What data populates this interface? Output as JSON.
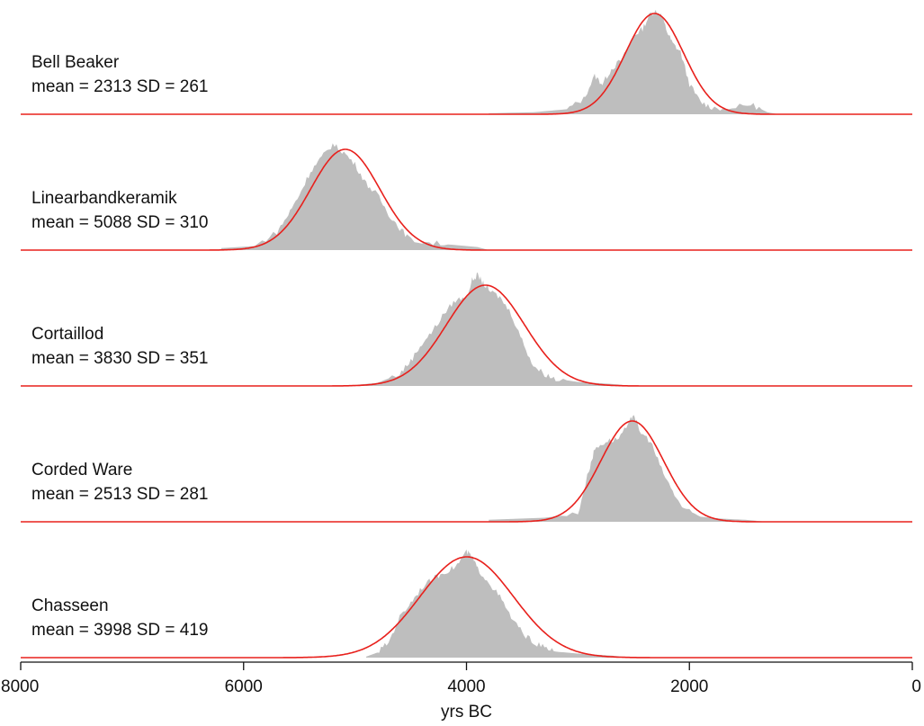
{
  "chart_data": {
    "type": "area",
    "xlabel": "yrs BC",
    "xlim": [
      8000,
      0
    ],
    "x_reversed": true,
    "x_ticks": [
      8000,
      6000,
      4000,
      2000,
      0
    ],
    "colors": {
      "histogram": "#bebebe",
      "fit_curve": "#e8201c"
    },
    "panels": [
      {
        "name": "Bell Beaker",
        "mean": 2313,
        "sd": 261,
        "stats_label": "mean = 2313 SD = 261",
        "hist_support": [
          3800,
          1200
        ],
        "hist_shape": [
          [
            3800,
            0.01
          ],
          [
            3400,
            0.02
          ],
          [
            3100,
            0.05
          ],
          [
            2950,
            0.15
          ],
          [
            2850,
            0.38
          ],
          [
            2780,
            0.3
          ],
          [
            2700,
            0.45
          ],
          [
            2600,
            0.55
          ],
          [
            2500,
            0.78
          ],
          [
            2420,
            0.85
          ],
          [
            2350,
            1.0
          ],
          [
            2300,
            1.02
          ],
          [
            2250,
            0.98
          ],
          [
            2200,
            0.82
          ],
          [
            2150,
            0.7
          ],
          [
            2080,
            0.62
          ],
          [
            2000,
            0.3
          ],
          [
            1900,
            0.12
          ],
          [
            1800,
            0.07
          ],
          [
            1650,
            0.05
          ],
          [
            1450,
            0.1
          ],
          [
            1300,
            0.02
          ],
          [
            1200,
            0.0
          ]
        ]
      },
      {
        "name": "Linearbandkeramik",
        "mean": 5088,
        "sd": 310,
        "stats_label": "mean = 5088 SD = 310",
        "hist_support": [
          6200,
          3800
        ],
        "hist_shape": [
          [
            6200,
            0.02
          ],
          [
            5900,
            0.04
          ],
          [
            5700,
            0.18
          ],
          [
            5600,
            0.35
          ],
          [
            5500,
            0.55
          ],
          [
            5400,
            0.78
          ],
          [
            5300,
            0.92
          ],
          [
            5200,
            1.05
          ],
          [
            5100,
            0.97
          ],
          [
            5000,
            0.85
          ],
          [
            4900,
            0.66
          ],
          [
            4800,
            0.55
          ],
          [
            4700,
            0.36
          ],
          [
            4600,
            0.22
          ],
          [
            4500,
            0.1
          ],
          [
            4300,
            0.07
          ],
          [
            4100,
            0.05
          ],
          [
            3900,
            0.03
          ],
          [
            3800,
            0.0
          ]
        ]
      },
      {
        "name": "Cortaillod",
        "mean": 3830,
        "sd": 351,
        "stats_label": "mean = 3830 SD = 351",
        "hist_support": [
          5000,
          2500
        ],
        "hist_shape": [
          [
            5000,
            0.01
          ],
          [
            4800,
            0.03
          ],
          [
            4600,
            0.12
          ],
          [
            4500,
            0.25
          ],
          [
            4400,
            0.42
          ],
          [
            4300,
            0.55
          ],
          [
            4200,
            0.72
          ],
          [
            4100,
            0.85
          ],
          [
            4000,
            0.88
          ],
          [
            3950,
            1.05
          ],
          [
            3900,
            1.1
          ],
          [
            3850,
            1.02
          ],
          [
            3800,
            0.95
          ],
          [
            3700,
            0.88
          ],
          [
            3600,
            0.72
          ],
          [
            3500,
            0.45
          ],
          [
            3400,
            0.2
          ],
          [
            3300,
            0.12
          ],
          [
            3200,
            0.07
          ],
          [
            3000,
            0.04
          ],
          [
            2700,
            0.02
          ],
          [
            2500,
            0.0
          ]
        ]
      },
      {
        "name": "Corded Ware",
        "mean": 2513,
        "sd": 281,
        "stats_label": "mean = 2513 SD = 281",
        "hist_support": [
          3800,
          1300
        ],
        "hist_shape": [
          [
            3800,
            0.02
          ],
          [
            3300,
            0.04
          ],
          [
            3000,
            0.08
          ],
          [
            2900,
            0.52
          ],
          [
            2850,
            0.72
          ],
          [
            2750,
            0.8
          ],
          [
            2650,
            0.82
          ],
          [
            2550,
            0.95
          ],
          [
            2500,
            1.08
          ],
          [
            2450,
            0.9
          ],
          [
            2350,
            0.8
          ],
          [
            2250,
            0.52
          ],
          [
            2150,
            0.3
          ],
          [
            2050,
            0.12
          ],
          [
            1900,
            0.05
          ],
          [
            1700,
            0.03
          ],
          [
            1500,
            0.02
          ],
          [
            1300,
            0.0
          ]
        ]
      },
      {
        "name": "Chasseen",
        "mean": 3998,
        "sd": 419,
        "stats_label": "mean = 3998 SD = 419",
        "hist_support": [
          4900,
          2500
        ],
        "hist_shape": [
          [
            4900,
            0.01
          ],
          [
            4800,
            0.05
          ],
          [
            4700,
            0.15
          ],
          [
            4600,
            0.4
          ],
          [
            4500,
            0.55
          ],
          [
            4400,
            0.7
          ],
          [
            4300,
            0.78
          ],
          [
            4200,
            0.85
          ],
          [
            4100,
            0.9
          ],
          [
            4000,
            1.05
          ],
          [
            3950,
            1.0
          ],
          [
            3900,
            0.88
          ],
          [
            3800,
            0.75
          ],
          [
            3700,
            0.6
          ],
          [
            3600,
            0.4
          ],
          [
            3500,
            0.25
          ],
          [
            3400,
            0.15
          ],
          [
            3300,
            0.1
          ],
          [
            3200,
            0.06
          ],
          [
            3000,
            0.04
          ],
          [
            2700,
            0.02
          ],
          [
            2500,
            0.0
          ]
        ]
      }
    ]
  }
}
